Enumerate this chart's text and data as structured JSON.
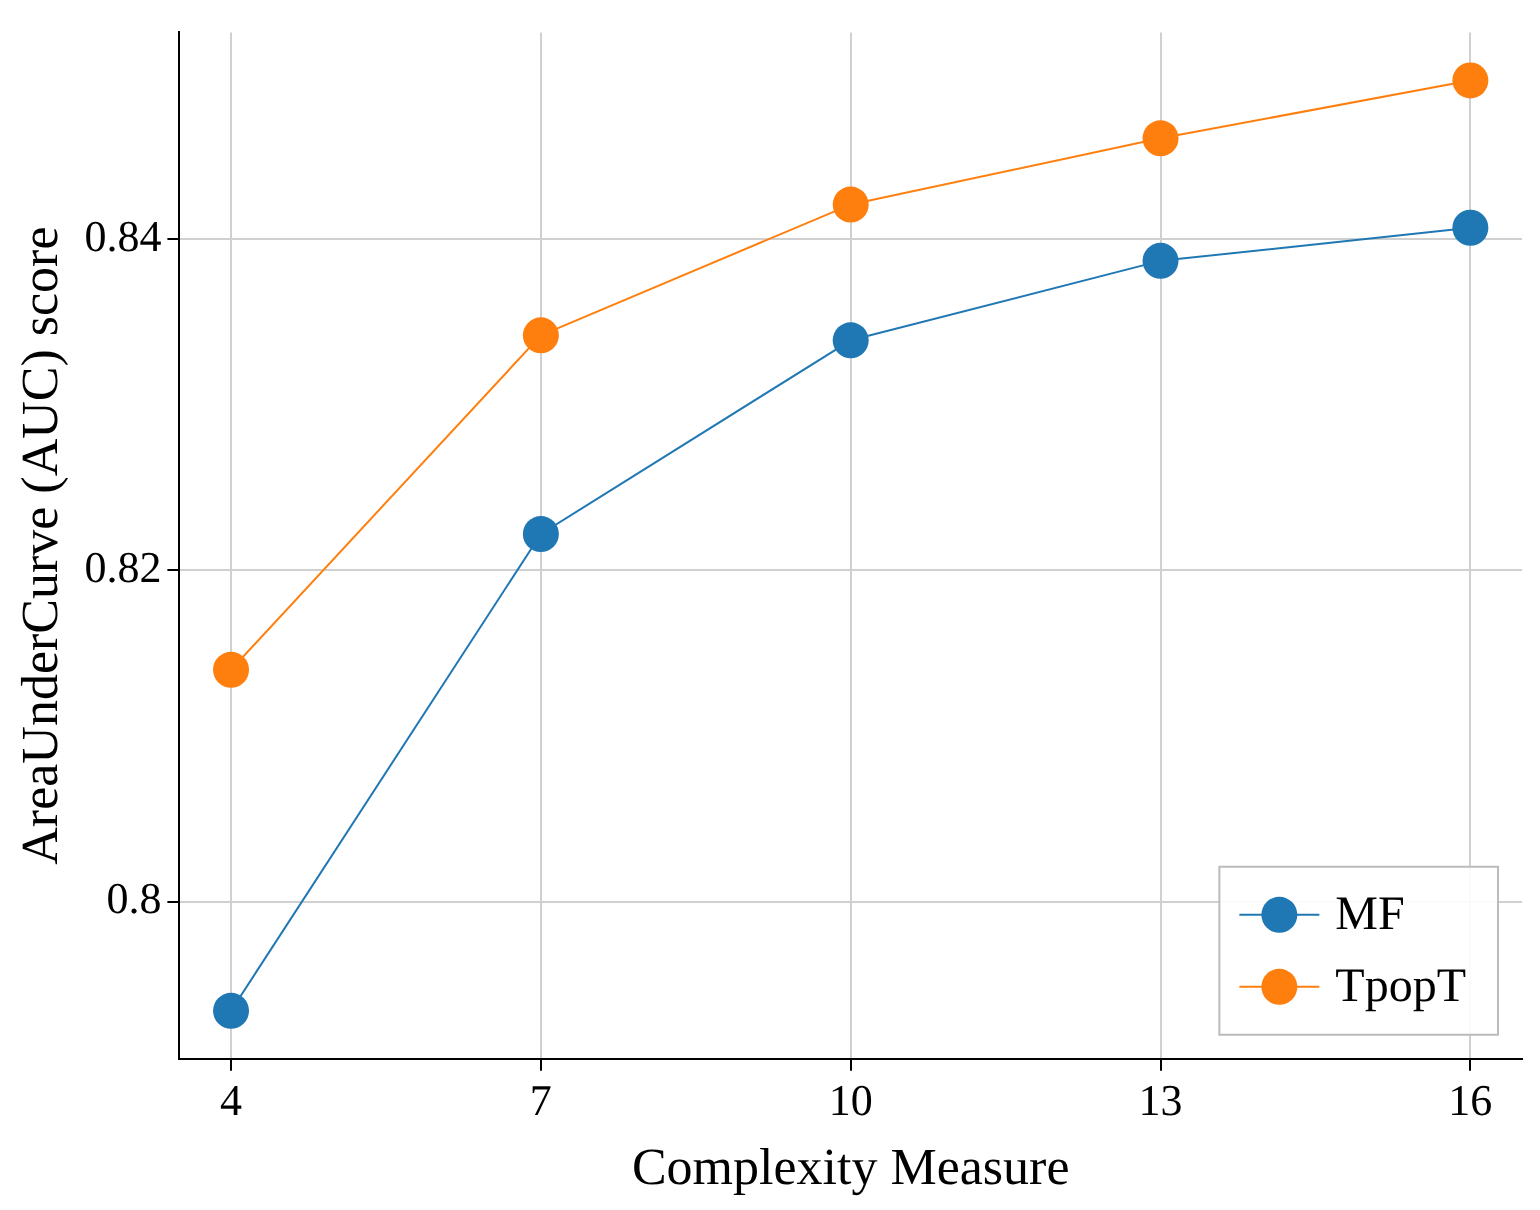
{
  "chart_data": {
    "type": "line",
    "xlabel": "Complexity Measure",
    "ylabel": "AreaUnderCurve (AUC) score",
    "x": [
      4,
      7,
      10,
      13,
      16
    ],
    "series": [
      {
        "name": "MF",
        "color": "#1f77b4",
        "values": [
          0.7934,
          0.8222,
          0.8339,
          0.8387,
          0.8407
        ]
      },
      {
        "name": "TpopT",
        "color": "#ff7f0e",
        "values": [
          0.814,
          0.8342,
          0.8421,
          0.8461,
          0.8496
        ]
      }
    ],
    "xlim": [
      3.5,
      16.5
    ],
    "xticks": [
      4,
      7,
      10,
      13,
      16
    ],
    "ylim": [
      0.7905,
      0.8525
    ],
    "yticks": [
      {
        "value": 0.8,
        "label": "0.8"
      },
      0.82,
      0.84
    ],
    "grid": true,
    "legend": "bottom right",
    "marker": "circle",
    "line_style": "solid"
  }
}
